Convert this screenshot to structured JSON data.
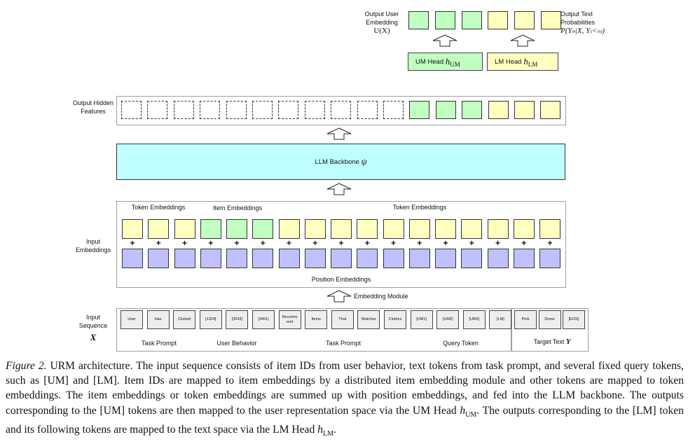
{
  "colors": {
    "token": "#ffffc0",
    "item": "#c0ffc0",
    "position": "#c0c0ff",
    "backbone": "#c0ffff",
    "um": "#c0ffc0",
    "lm": "#ffffc0",
    "input_token": "#eeeeee"
  },
  "output": {
    "user_embedding_label": "Output User Embedding",
    "user_embedding_math": "U(X)",
    "text_prob_label": "Output Text Probabilities",
    "text_prob_math": "P(Yₙ|X, Y₍<ₙ₎)",
    "boxes": [
      "um",
      "um",
      "um",
      "lm",
      "lm",
      "lm"
    ]
  },
  "heads": {
    "um_label": "UM Head",
    "um_math": "h",
    "um_sub": "UM",
    "lm_label": "LM Head",
    "lm_math": "h",
    "lm_sub": "LM"
  },
  "hidden": {
    "label": "Output Hidden Features",
    "boxes": [
      "empty",
      "empty",
      "empty",
      "empty",
      "empty",
      "empty",
      "empty",
      "empty",
      "empty",
      "empty",
      "empty",
      "um",
      "um",
      "um",
      "lm",
      "lm",
      "lm"
    ]
  },
  "backbone": {
    "label": "LLM Backbone",
    "symbol": "ψ"
  },
  "embeddings": {
    "label": "Input Embeddings",
    "groups": [
      "Token Embeddings",
      "Item Embeddings",
      "Token Embeddings"
    ],
    "position_label": "Position Embeddings",
    "plus": "+",
    "types": [
      "token",
      "token",
      "token",
      "item",
      "item",
      "item",
      "token",
      "token",
      "token",
      "token",
      "token",
      "token",
      "token",
      "token",
      "token",
      "token",
      "token"
    ]
  },
  "module_label": "Embedding Module",
  "input": {
    "label": "Input Sequence",
    "symbol": "X",
    "tokens": [
      "User",
      "Has",
      "Clicked",
      "[1324]",
      "[3543]",
      "[3451]",
      "Recomm end",
      "Items",
      "That",
      "Matches",
      "Clothes",
      "[UM1]",
      "[UM2]",
      "[UM3]",
      "[LM]"
    ],
    "target_tokens": [
      "Pink",
      "Dress",
      "[EOS]"
    ],
    "groups": [
      "Task Prompt",
      "User Behavior",
      "Task Prompt",
      "Query Token"
    ],
    "target_label": "Target Text",
    "target_symbol": "Y"
  },
  "caption": {
    "fig": "Figure 2.",
    "text": " URM architecture. The input sequence consists of item IDs from user behavior, text tokens from task prompt, and several fixed query tokens, such as [UM] and [LM]. Item IDs are mapped to item embeddings by a distributed item embedding module and other tokens are mapped to token embeddings. The item embeddings or token embeddings are summed up with position embeddings, and fed into the LLM backbone. The outputs corresponding to the [UM] tokens are then mapped to the user representation space via the UM Head ",
    "h": "h",
    "um_sub": "UM",
    "text2": ". The outputs corresponding to the [LM] token and its following tokens are mapped to the text space via the LM Head ",
    "lm_sub": "LM",
    "end": "."
  }
}
